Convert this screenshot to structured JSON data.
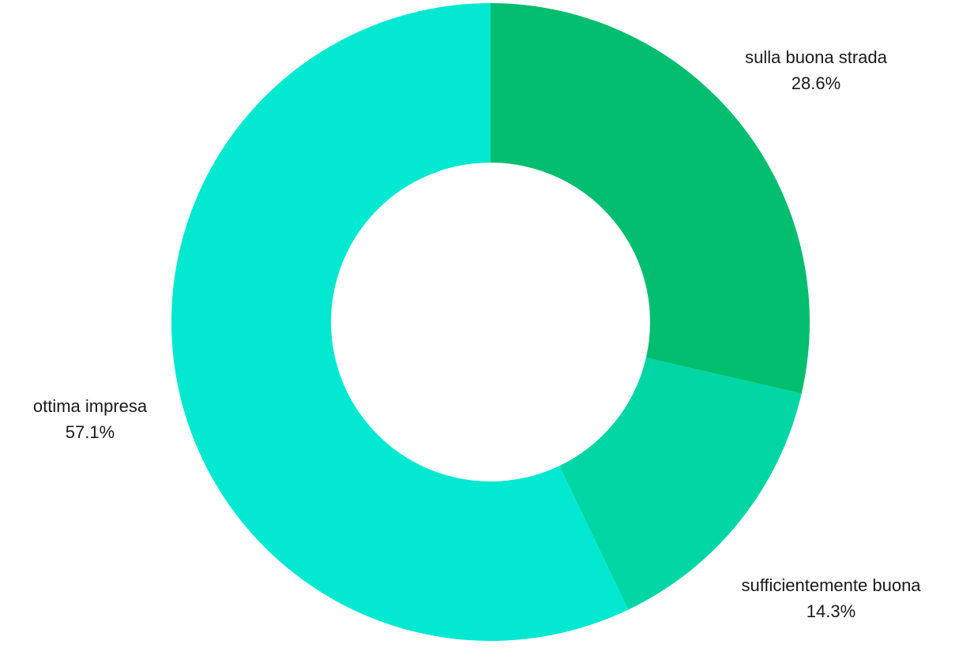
{
  "chart_data": {
    "type": "pie",
    "donut": true,
    "title": "",
    "slices": [
      {
        "label": "sulla buona strada",
        "value": 28.6,
        "value_label": "28.6%",
        "color": "#02be6e"
      },
      {
        "label": "sufficientemente buona",
        "value": 14.3,
        "value_label": "14.3%",
        "color": "#01d6a4"
      },
      {
        "label": "ottima impresa",
        "value": 57.1,
        "value_label": "57.1%",
        "color": "#02e8d1"
      }
    ],
    "start_angle": "12 o'clock",
    "direction": "clockwise",
    "legend": "none"
  }
}
